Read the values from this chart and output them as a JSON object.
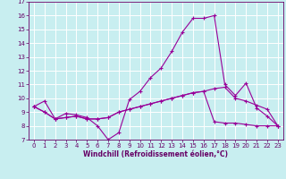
{
  "title": "",
  "xlabel": "Windchill (Refroidissement éolien,°C)",
  "background_color": "#c8eef0",
  "line_color": "#990099",
  "grid_color": "#ffffff",
  "xlim": [
    -0.5,
    23.5
  ],
  "ylim": [
    7,
    17
  ],
  "yticks": [
    7,
    8,
    9,
    10,
    11,
    12,
    13,
    14,
    15,
    16,
    17
  ],
  "xticks": [
    0,
    1,
    2,
    3,
    4,
    5,
    6,
    7,
    8,
    9,
    10,
    11,
    12,
    13,
    14,
    15,
    16,
    17,
    18,
    19,
    20,
    21,
    22,
    23
  ],
  "series": [
    [
      9.4,
      9.8,
      8.5,
      8.9,
      8.8,
      8.6,
      8.0,
      7.0,
      7.5,
      9.9,
      10.5,
      11.5,
      12.2,
      13.4,
      14.8,
      15.8,
      15.8,
      16.0,
      11.0,
      10.2,
      11.1,
      9.3,
      8.7,
      8.0
    ],
    [
      9.4,
      9.0,
      8.5,
      8.6,
      8.7,
      8.5,
      8.5,
      8.6,
      9.0,
      9.2,
      9.4,
      9.6,
      9.8,
      10.0,
      10.2,
      10.4,
      10.5,
      10.7,
      10.8,
      10.0,
      9.8,
      9.5,
      9.2,
      8.0
    ],
    [
      9.4,
      9.0,
      8.5,
      8.6,
      8.7,
      8.5,
      8.5,
      8.6,
      9.0,
      9.2,
      9.4,
      9.6,
      9.8,
      10.0,
      10.2,
      10.4,
      10.5,
      8.3,
      8.2,
      8.2,
      8.1,
      8.0,
      8.0,
      8.0
    ]
  ],
  "tick_fontsize": 5,
  "xlabel_fontsize": 5.5,
  "marker": "+",
  "markersize": 3,
  "linewidth": 0.8
}
